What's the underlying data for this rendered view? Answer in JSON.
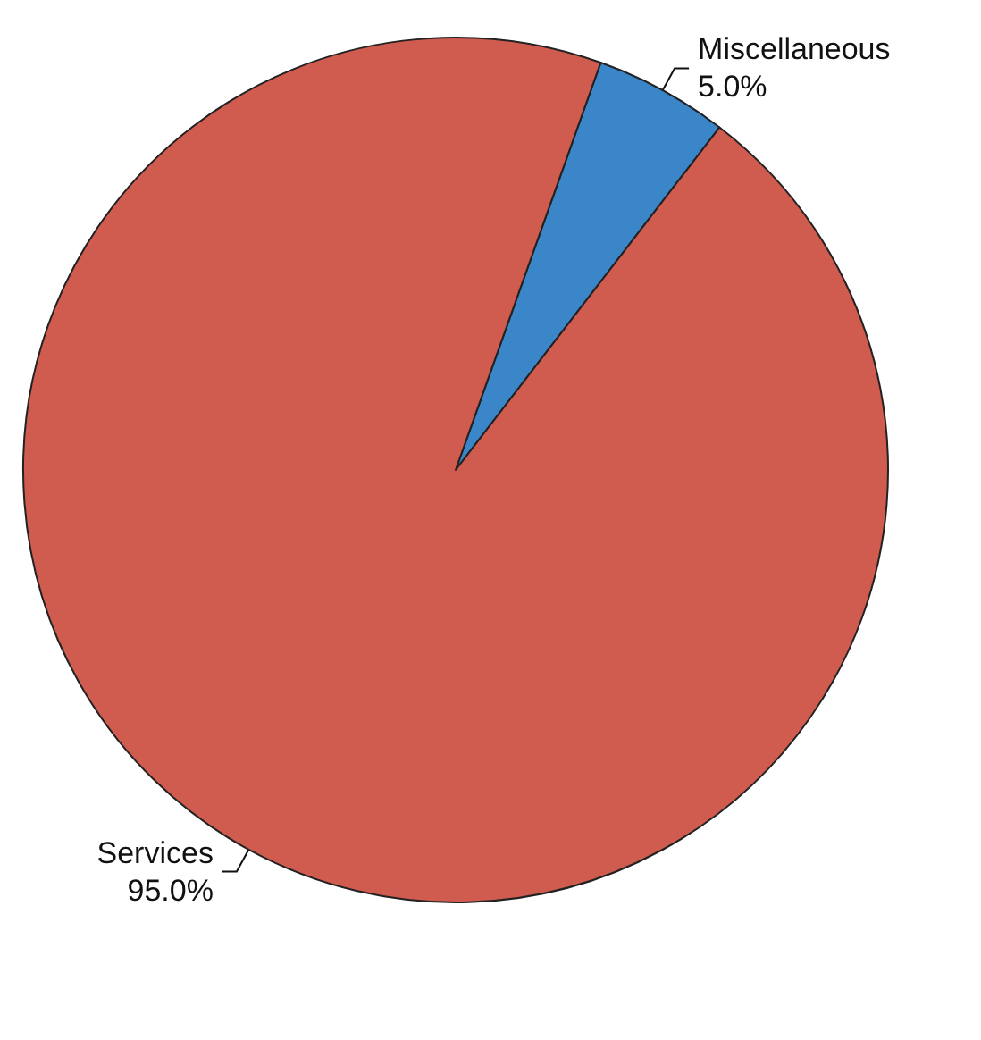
{
  "chart_data": {
    "type": "pie",
    "categories": [
      "Miscellaneous",
      "Services"
    ],
    "values": [
      5,
      95
    ],
    "colors": [
      "#3a86c8",
      "#d05b4f"
    ],
    "value_labels": [
      "5.0%",
      "95.0%"
    ]
  }
}
